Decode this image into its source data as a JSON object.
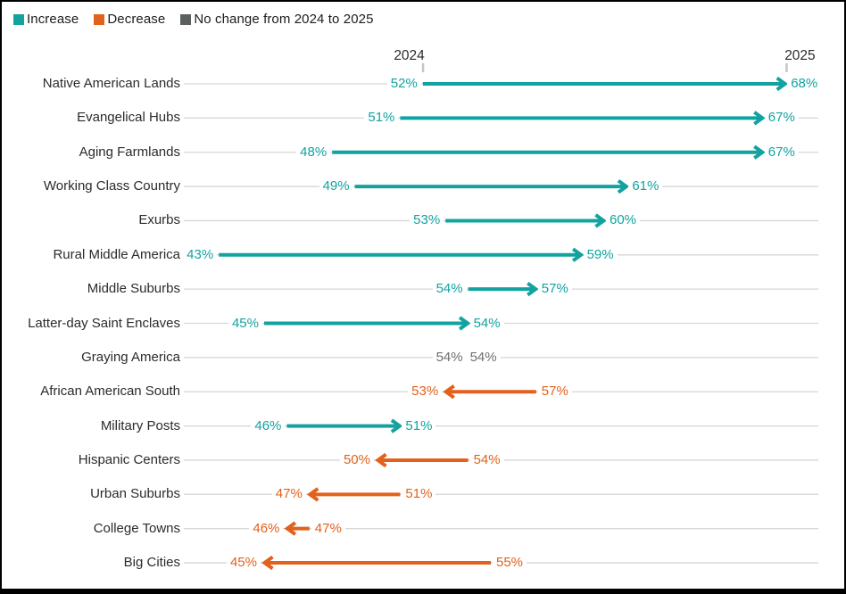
{
  "legend": {
    "items": [
      {
        "key": "increase",
        "label": "Increase",
        "color": "#12a3a0"
      },
      {
        "key": "decrease",
        "label": "Decrease",
        "color": "#e2611c"
      },
      {
        "key": "none",
        "label": "No change from 2024 to 2025",
        "color": "#5d6060"
      }
    ]
  },
  "chart_data": {
    "type": "arrow",
    "unit": "%",
    "columns": {
      "start": "2024",
      "end": "2025"
    },
    "x_range_pct": [
      43,
      68
    ],
    "legend_position": "top-left",
    "colors": {
      "increase": "#12a3a0",
      "decrease": "#e2611c",
      "no_change_marker": "#2e2e2e",
      "no_change_text": "#6e6e6e",
      "baseline": "#d6d6d6",
      "tick": "#c6c6c6",
      "row_label": "#2b2b2b"
    },
    "rows": [
      {
        "label": "Native American Lands",
        "start": 52,
        "end": 68,
        "change": "increase"
      },
      {
        "label": "Evangelical Hubs",
        "start": 51,
        "end": 67,
        "change": "increase"
      },
      {
        "label": "Aging Farmlands",
        "start": 48,
        "end": 67,
        "change": "increase"
      },
      {
        "label": "Working Class Country",
        "start": 49,
        "end": 61,
        "change": "increase"
      },
      {
        "label": "Exurbs",
        "start": 53,
        "end": 60,
        "change": "increase"
      },
      {
        "label": "Rural Middle America",
        "start": 43,
        "end": 59,
        "change": "increase"
      },
      {
        "label": "Middle Suburbs",
        "start": 54,
        "end": 57,
        "change": "increase"
      },
      {
        "label": "Latter-day Saint Enclaves",
        "start": 45,
        "end": 54,
        "change": "increase"
      },
      {
        "label": "Graying America",
        "start": 54,
        "end": 54,
        "change": "none"
      },
      {
        "label": "African American South",
        "start": 57,
        "end": 53,
        "change": "decrease"
      },
      {
        "label": "Military Posts",
        "start": 46,
        "end": 51,
        "change": "increase"
      },
      {
        "label": "Hispanic Centers",
        "start": 54,
        "end": 50,
        "change": "decrease"
      },
      {
        "label": "Urban Suburbs",
        "start": 51,
        "end": 47,
        "change": "decrease"
      },
      {
        "label": "College Towns",
        "start": 47,
        "end": 46,
        "change": "decrease"
      },
      {
        "label": "Big Cities",
        "start": 55,
        "end": 45,
        "change": "decrease"
      }
    ]
  }
}
